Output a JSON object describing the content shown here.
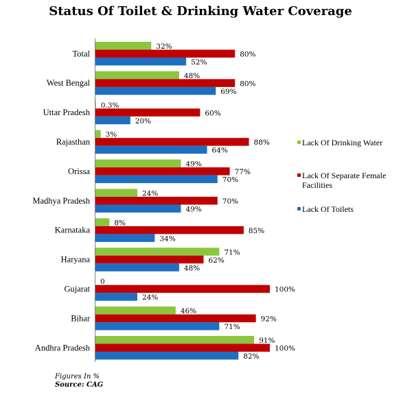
{
  "title": "Status Of Toilet & Drinking Water Coverage",
  "footnote": {
    "note": "Figures In %",
    "source": "Source: CAG"
  },
  "colors": {
    "drinking": "#8cc63f",
    "female": "#c00000",
    "toilets": "#1f6fc1"
  },
  "chart_data": {
    "type": "bar",
    "orientation": "horizontal",
    "title": "Status Of Toilet & Drinking Water Coverage",
    "categories": [
      "Total",
      "West Bengal",
      "Uttar Pradesh",
      "Rajasthan",
      "Orissa",
      "Madhya Pradesh",
      "Karnataka",
      "Haryana",
      "Gujarat",
      "Bihar",
      "Andhra Pradesh"
    ],
    "xlim": [
      0,
      100
    ],
    "grid": false,
    "legend_position": "right",
    "series": [
      {
        "name": "Lack Of Drinking Water",
        "color": "#8cc63f",
        "values": [
          32,
          48,
          0.3,
          3,
          49,
          24,
          8,
          71,
          0,
          46,
          91
        ],
        "labels": [
          "32%",
          "48%",
          "0.3%",
          "3%",
          "49%",
          "24%",
          "8%",
          "71%",
          "0",
          "46%",
          "91%"
        ]
      },
      {
        "name": "Lack Of Separate Female Facilities",
        "color": "#c00000",
        "values": [
          80,
          80,
          60,
          88,
          77,
          70,
          85,
          62,
          100,
          92,
          100
        ],
        "labels": [
          "80%",
          "80%",
          "60%",
          "88%",
          "77%",
          "70%",
          "85%",
          "62%",
          "100%",
          "92%",
          "100%"
        ]
      },
      {
        "name": "Lack Of Toilets",
        "color": "#1f6fc1",
        "values": [
          52,
          69,
          20,
          64,
          70,
          49,
          34,
          48,
          24,
          71,
          82
        ],
        "labels": [
          "52%",
          "69%",
          "20%",
          "64%",
          "70%",
          "49%",
          "34%",
          "48%",
          "24%",
          "71%",
          "82%"
        ]
      }
    ]
  }
}
